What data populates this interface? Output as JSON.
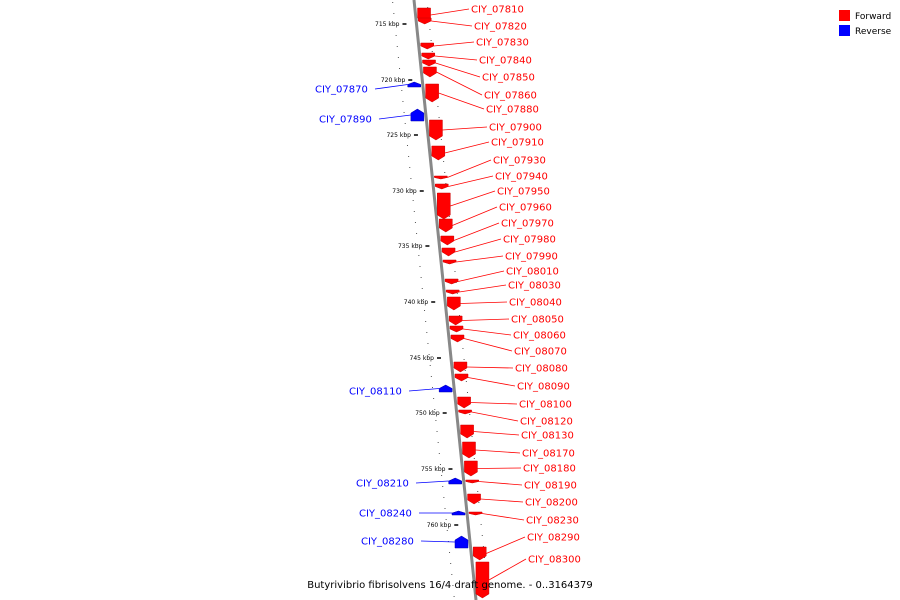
{
  "caption": "Butyrivibrio fibrisolvens 16/4 draft genome. - 0..3164379",
  "legend": [
    {
      "label": "Forward",
      "color": "#ff0000"
    },
    {
      "label": "Reverse",
      "color": "#0000ff"
    }
  ],
  "colors": {
    "forward": "#ff0000",
    "reverse": "#0000ff",
    "axis": "#888888"
  },
  "ticks": [
    {
      "label": "715 kbp",
      "kbp": 715
    },
    {
      "label": "720 kbp",
      "kbp": 720
    },
    {
      "label": "725 kbp",
      "kbp": 725
    },
    {
      "label": "730 kbp",
      "kbp": 730
    },
    {
      "label": "735 kbp",
      "kbp": 735
    },
    {
      "label": "740 kbp",
      "kbp": 740
    },
    {
      "label": "745 kbp",
      "kbp": 745
    },
    {
      "label": "750 kbp",
      "kbp": 750
    },
    {
      "label": "755 kbp",
      "kbp": 755
    },
    {
      "label": "760 kbp",
      "kbp": 760
    }
  ],
  "genes": [
    {
      "name": "CIY_07810",
      "strand": "forward"
    },
    {
      "name": "CIY_07820",
      "strand": "forward"
    },
    {
      "name": "CIY_07830",
      "strand": "forward"
    },
    {
      "name": "CIY_07840",
      "strand": "forward"
    },
    {
      "name": "CIY_07850",
      "strand": "forward"
    },
    {
      "name": "CIY_07860",
      "strand": "forward"
    },
    {
      "name": "CIY_07870",
      "strand": "reverse"
    },
    {
      "name": "CIY_07880",
      "strand": "forward"
    },
    {
      "name": "CIY_07890",
      "strand": "reverse"
    },
    {
      "name": "CIY_07900",
      "strand": "forward"
    },
    {
      "name": "CIY_07910",
      "strand": "forward"
    },
    {
      "name": "CIY_07930",
      "strand": "forward"
    },
    {
      "name": "CIY_07940",
      "strand": "forward"
    },
    {
      "name": "CIY_07950",
      "strand": "forward"
    },
    {
      "name": "CIY_07960",
      "strand": "forward"
    },
    {
      "name": "CIY_07970",
      "strand": "forward"
    },
    {
      "name": "CIY_07980",
      "strand": "forward"
    },
    {
      "name": "CIY_07990",
      "strand": "forward"
    },
    {
      "name": "CIY_08010",
      "strand": "forward"
    },
    {
      "name": "CIY_08030",
      "strand": "forward"
    },
    {
      "name": "CIY_08040",
      "strand": "forward"
    },
    {
      "name": "CIY_08050",
      "strand": "forward"
    },
    {
      "name": "CIY_08060",
      "strand": "forward"
    },
    {
      "name": "CIY_08070",
      "strand": "forward"
    },
    {
      "name": "CIY_08080",
      "strand": "forward"
    },
    {
      "name": "CIY_08090",
      "strand": "forward"
    },
    {
      "name": "CIY_08100",
      "strand": "forward"
    },
    {
      "name": "CIY_08110",
      "strand": "reverse"
    },
    {
      "name": "CIY_08120",
      "strand": "forward"
    },
    {
      "name": "CIY_08130",
      "strand": "forward"
    },
    {
      "name": "CIY_08170",
      "strand": "forward"
    },
    {
      "name": "CIY_08180",
      "strand": "forward"
    },
    {
      "name": "CIY_08190",
      "strand": "forward"
    },
    {
      "name": "CIY_08200",
      "strand": "forward"
    },
    {
      "name": "CIY_08210",
      "strand": "reverse"
    },
    {
      "name": "CIY_08230",
      "strand": "forward"
    },
    {
      "name": "CIY_08240",
      "strand": "reverse"
    },
    {
      "name": "CIY_08280",
      "strand": "reverse"
    },
    {
      "name": "CIY_08290",
      "strand": "forward"
    },
    {
      "name": "CIY_08300",
      "strand": "forward"
    }
  ]
}
